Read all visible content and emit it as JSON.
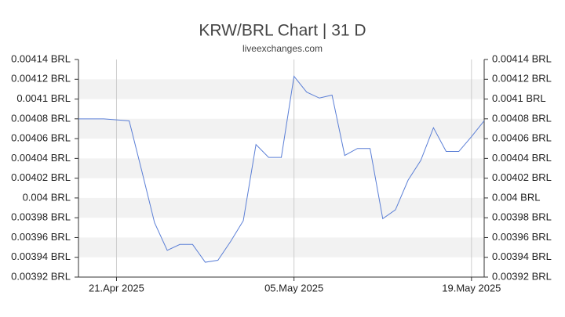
{
  "chart_data": {
    "type": "line",
    "title": "KRW/BRL Chart | 31 D",
    "subtitle": "liveexchanges.com",
    "x": [
      "2025-04-18",
      "2025-04-19",
      "2025-04-20",
      "2025-04-21",
      "2025-04-22",
      "2025-04-23",
      "2025-04-24",
      "2025-04-25",
      "2025-04-26",
      "2025-04-27",
      "2025-04-28",
      "2025-04-29",
      "2025-04-30",
      "2025-05-01",
      "2025-05-02",
      "2025-05-03",
      "2025-05-04",
      "2025-05-05",
      "2025-05-06",
      "2025-05-07",
      "2025-05-08",
      "2025-05-09",
      "2025-05-10",
      "2025-05-11",
      "2025-05-12",
      "2025-05-13",
      "2025-05-14",
      "2025-05-15",
      "2025-05-16",
      "2025-05-17",
      "2025-05-18",
      "2025-05-19",
      "2025-05-20"
    ],
    "series": [
      {
        "name": "KRW/BRL",
        "color": "#5b7fd6",
        "values": [
          0.00408,
          0.00408,
          0.00408,
          0.004079,
          0.004078,
          0.004027,
          0.003975,
          0.003947,
          0.003953,
          0.003953,
          0.003935,
          0.003937,
          0.003956,
          0.003977,
          0.004054,
          0.004041,
          0.004041,
          0.004123,
          0.004107,
          0.004101,
          0.004104,
          0.004043,
          0.00405,
          0.00405,
          0.003979,
          0.003988,
          0.004018,
          0.004038,
          0.004071,
          0.004047,
          0.004047,
          0.004062,
          0.004078
        ]
      }
    ],
    "xlim": [
      "2025-04-18",
      "2025-05-20"
    ],
    "xticks": [
      {
        "value": "2025-04-21",
        "label": "21.Apr 2025"
      },
      {
        "value": "2025-05-05",
        "label": "05.May 2025"
      },
      {
        "value": "2025-05-19",
        "label": "19.May 2025"
      }
    ],
    "ylim": [
      0.00392,
      0.00414
    ],
    "yticks": [
      {
        "value": 0.00392,
        "label": "0.00392 BRL"
      },
      {
        "value": 0.00394,
        "label": "0.00394 BRL"
      },
      {
        "value": 0.00396,
        "label": "0.00396 BRL"
      },
      {
        "value": 0.00398,
        "label": "0.00398 BRL"
      },
      {
        "value": 0.004,
        "label": "0.004 BRL"
      },
      {
        "value": 0.00402,
        "label": "0.00402 BRL"
      },
      {
        "value": 0.00404,
        "label": "0.00404 BRL"
      },
      {
        "value": 0.00406,
        "label": "0.00406 BRL"
      },
      {
        "value": 0.00408,
        "label": "0.00408 BRL"
      },
      {
        "value": 0.0041,
        "label": "0.0041 BRL"
      },
      {
        "value": 0.00412,
        "label": "0.00412 BRL"
      },
      {
        "value": 0.00414,
        "label": "0.00414 BRL"
      }
    ],
    "band_grid": true,
    "right_axis": true
  }
}
